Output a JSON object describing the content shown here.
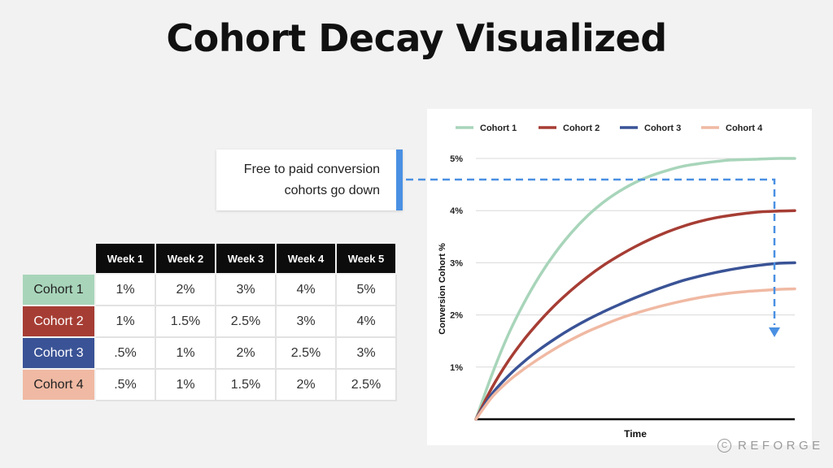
{
  "title": "Cohort Decay Visualized",
  "callout": {
    "text": "Free to paid conversion\ncohorts go down"
  },
  "table": {
    "columns": [
      "Week 1",
      "Week 2",
      "Week 3",
      "Week 4",
      "Week 5"
    ],
    "rows": [
      {
        "label": "Cohort 1",
        "color": "#a8d5ba",
        "text_color": "#222222",
        "values": [
          "1%",
          "2%",
          "3%",
          "4%",
          "5%"
        ]
      },
      {
        "label": "Cohort 2",
        "color": "#a63d34",
        "text_color": "#ffffff",
        "values": [
          "1%",
          "1.5%",
          "2.5%",
          "3%",
          "4%"
        ]
      },
      {
        "label": "Cohort 3",
        "color": "#3a5396",
        "text_color": "#ffffff",
        "values": [
          ".5%",
          "1%",
          "2%",
          "2.5%",
          "3%"
        ]
      },
      {
        "label": "Cohort 4",
        "color": "#f0b9a3",
        "text_color": "#222222",
        "values": [
          ".5%",
          "1%",
          "1.5%",
          "2%",
          "2.5%"
        ]
      }
    ]
  },
  "chart_data": {
    "type": "line",
    "xlabel": "Time",
    "ylabel": "Conversion Cohort %",
    "ylim": [
      0,
      5
    ],
    "yticks": [
      {
        "value": 1,
        "label": "1%"
      },
      {
        "value": 2,
        "label": "2%"
      },
      {
        "value": 3,
        "label": "3%"
      },
      {
        "value": 4,
        "label": "4%"
      },
      {
        "value": 5,
        "label": "5%"
      }
    ],
    "grid": true,
    "legend_position": "top",
    "x": [
      0,
      0.05,
      0.1,
      0.15,
      0.2,
      0.25,
      0.3,
      0.35,
      0.4,
      0.45,
      0.5,
      0.55,
      0.6,
      0.65,
      0.7,
      0.75,
      0.8,
      0.85,
      0.9,
      0.95,
      1.0
    ],
    "series": [
      {
        "name": "Cohort 1",
        "color": "#a8d5ba",
        "values": [
          0,
          0.85,
          1.6,
          2.22,
          2.75,
          3.2,
          3.58,
          3.9,
          4.16,
          4.37,
          4.54,
          4.67,
          4.77,
          4.85,
          4.9,
          4.94,
          4.97,
          4.98,
          4.99,
          5.0,
          5.0
        ]
      },
      {
        "name": "Cohort 2",
        "color": "#a63d34",
        "values": [
          0,
          0.6,
          1.1,
          1.52,
          1.88,
          2.2,
          2.48,
          2.73,
          2.95,
          3.14,
          3.31,
          3.46,
          3.59,
          3.7,
          3.79,
          3.86,
          3.91,
          3.95,
          3.98,
          3.99,
          4.0
        ]
      },
      {
        "name": "Cohort 3",
        "color": "#3a5396",
        "values": [
          0,
          0.48,
          0.82,
          1.1,
          1.34,
          1.55,
          1.74,
          1.91,
          2.06,
          2.2,
          2.33,
          2.45,
          2.56,
          2.66,
          2.74,
          2.81,
          2.87,
          2.92,
          2.96,
          2.99,
          3.0
        ]
      },
      {
        "name": "Cohort 4",
        "color": "#f0b9a3",
        "values": [
          0,
          0.42,
          0.72,
          0.96,
          1.17,
          1.36,
          1.53,
          1.68,
          1.81,
          1.93,
          2.03,
          2.12,
          2.2,
          2.27,
          2.33,
          2.38,
          2.42,
          2.45,
          2.47,
          2.49,
          2.5
        ]
      }
    ],
    "annotation": {
      "type": "dashed-arrow",
      "color": "#4a90e2"
    }
  },
  "brand": {
    "text": "REFORGE",
    "icon": "copyright-icon",
    "icon_glyph": "C"
  }
}
